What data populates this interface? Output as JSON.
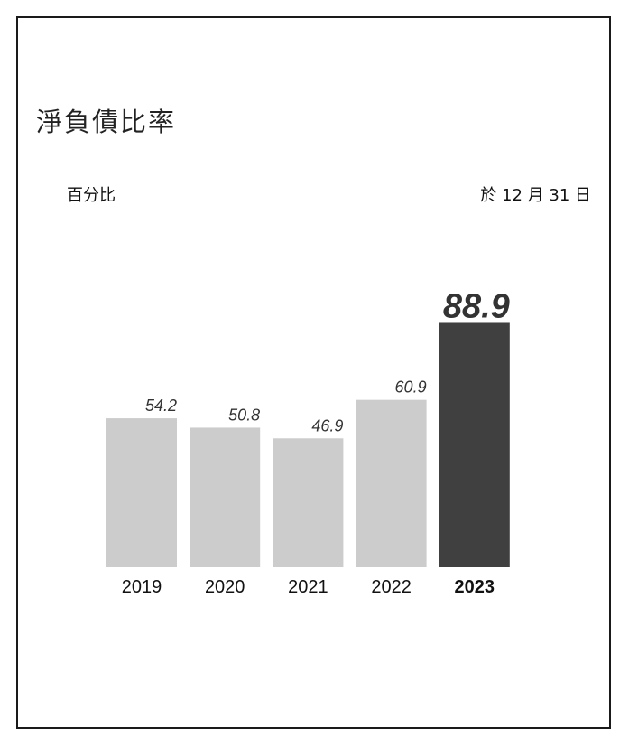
{
  "chart_data": {
    "type": "bar",
    "title": "淨負債比率",
    "unit_label": "百分比",
    "date_label": "於 12 月 31 日",
    "categories": [
      "2019",
      "2020",
      "2021",
      "2022",
      "2023"
    ],
    "values": [
      54.2,
      50.8,
      46.9,
      60.9,
      88.9
    ],
    "ylim": [
      0,
      100
    ],
    "highlight_index": 4,
    "colors": {
      "bar": "#cccccc",
      "highlight_bar": "#404040",
      "highlight_value": "#f04a0f",
      "value_label": "#333333"
    },
    "grid": false
  }
}
